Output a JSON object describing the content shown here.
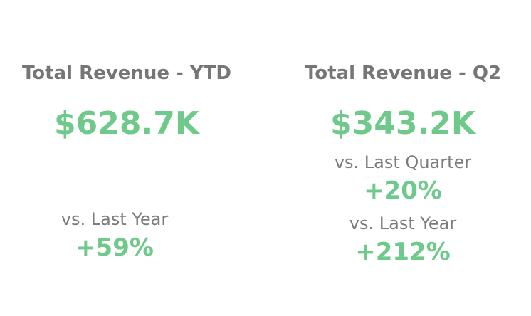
{
  "colors": {
    "title": "#767676",
    "value": "#6fc98a",
    "label": "#7b7b7b"
  },
  "ytd": {
    "title": "Total Revenue - YTD",
    "value": "$628.7K",
    "vs_last_year_label": "vs. Last Year",
    "vs_last_year_value": "+59%"
  },
  "q2": {
    "title": "Total Revenue - Q2",
    "value": "$343.2K",
    "vs_last_quarter_label": "vs. Last Quarter",
    "vs_last_quarter_value": "+20%",
    "vs_last_year_label": "vs. Last Year",
    "vs_last_year_value": "+212%"
  }
}
